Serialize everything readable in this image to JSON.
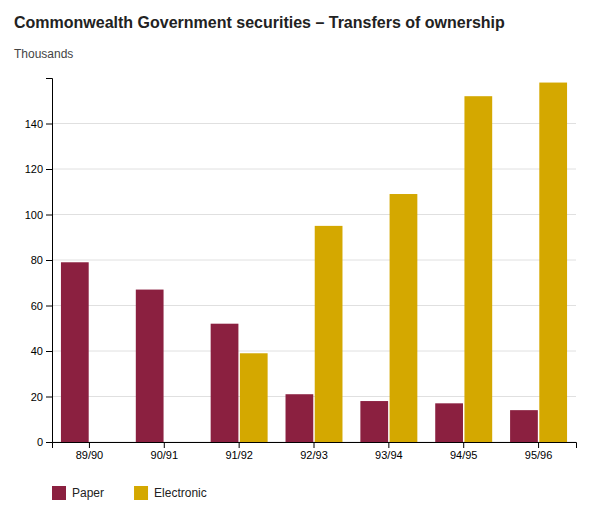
{
  "chart_data": {
    "type": "bar",
    "title": "Commonwealth Government securities – Transfers of ownership",
    "ylabel": "Thousands",
    "categories": [
      "89/90",
      "90/91",
      "91/92",
      "92/93",
      "93/94",
      "94/95",
      "95/96"
    ],
    "series": [
      {
        "name": "Paper",
        "color": "#8B2040",
        "values": [
          79,
          67,
          52,
          21,
          18,
          17,
          14
        ]
      },
      {
        "name": "Electronic",
        "color": "#D4A800",
        "values": [
          0,
          0,
          39,
          95,
          109,
          152,
          158
        ]
      }
    ],
    "ylim": [
      0,
      160
    ],
    "yticks": [
      0,
      20,
      40,
      60,
      80,
      100,
      120,
      140
    ],
    "grid": true,
    "legend": "bottom"
  }
}
